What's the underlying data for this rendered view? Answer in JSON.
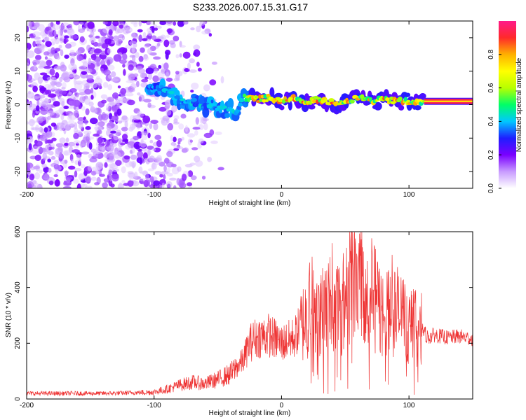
{
  "title": "S233.2026.007.15.31.G17",
  "chart_data": [
    {
      "type": "heatmap",
      "name": "spectrogram",
      "xlabel": "Height of straight line (km)",
      "ylabel": "Frequency (Hz)",
      "xlim": [
        -200,
        150
      ],
      "ylim": [
        -25,
        25
      ],
      "xticks": [
        -200,
        -100,
        0,
        100
      ],
      "yticks": [
        -20,
        -10,
        0,
        10,
        20
      ],
      "colorbar": {
        "label": "Normalized spectral amplitude",
        "range": [
          0,
          1
        ],
        "ticks": [
          0.0,
          0.2,
          0.4,
          0.6,
          0.8
        ],
        "tick_labels": [
          "0.0",
          "0.2",
          "0.4",
          "0.6",
          "0.8"
        ],
        "colormap": [
          "#ffffff",
          "#c89bff",
          "#7a00ff",
          "#1e1eff",
          "#00c8ff",
          "#00ff66",
          "#b8ff00",
          "#ffff00",
          "#ffb000",
          "#ff2a2a",
          "#ff1a8a"
        ]
      },
      "ridge": [
        {
          "x": -105,
          "y": 5.5
        },
        {
          "x": -95,
          "y": 5
        },
        {
          "x": -90,
          "y": 4
        },
        {
          "x": -85,
          "y": 2.5
        },
        {
          "x": -80,
          "y": 1
        },
        {
          "x": -75,
          "y": 0.5
        },
        {
          "x": -70,
          "y": 1
        },
        {
          "x": -65,
          "y": 0
        },
        {
          "x": -60,
          "y": -0.5
        },
        {
          "x": -55,
          "y": 0.5
        },
        {
          "x": -50,
          "y": -1
        },
        {
          "x": -45,
          "y": -1.5
        },
        {
          "x": -40,
          "y": -1
        },
        {
          "x": -35,
          "y": -2
        },
        {
          "x": -30,
          "y": 2
        },
        {
          "x": -20,
          "y": 1.5
        },
        {
          "x": -10,
          "y": 2
        },
        {
          "x": 0,
          "y": 1
        },
        {
          "x": 10,
          "y": 2
        },
        {
          "x": 20,
          "y": 1
        },
        {
          "x": 30,
          "y": 1.5
        },
        {
          "x": 40,
          "y": 0.5
        },
        {
          "x": 50,
          "y": 1
        },
        {
          "x": 60,
          "y": 2
        },
        {
          "x": 70,
          "y": 1
        },
        {
          "x": 80,
          "y": 1.5
        },
        {
          "x": 90,
          "y": 1
        },
        {
          "x": 100,
          "y": 1
        },
        {
          "x": 110,
          "y": 1
        },
        {
          "x": 120,
          "y": 1
        },
        {
          "x": 130,
          "y": 1
        },
        {
          "x": 140,
          "y": 1
        },
        {
          "x": 150,
          "y": 1
        }
      ]
    },
    {
      "type": "line",
      "name": "snr",
      "xlabel": "Height of straight line (km)",
      "ylabel": "SNR (10 * v/v)",
      "xlim": [
        -200,
        150
      ],
      "ylim": [
        0,
        600
      ],
      "xticks": [
        -200,
        -100,
        0,
        100
      ],
      "yticks": [
        0,
        200,
        400,
        600
      ],
      "color": "#ee3333",
      "series": [
        {
          "name": "SNR",
          "x": [
            -200,
            -180,
            -160,
            -140,
            -120,
            -100,
            -90,
            -80,
            -70,
            -60,
            -50,
            -40,
            -30,
            -25,
            -20,
            -10,
            0,
            10,
            20,
            25,
            30,
            40,
            50,
            55,
            60,
            70,
            80,
            90,
            100,
            110,
            115,
            120,
            130,
            140,
            150
          ],
          "values": [
            20,
            20,
            20,
            20,
            22,
            25,
            35,
            50,
            60,
            55,
            70,
            90,
            140,
            200,
            220,
            230,
            200,
            220,
            300,
            380,
            320,
            330,
            350,
            480,
            450,
            380,
            300,
            320,
            260,
            250,
            220,
            230,
            220,
            225,
            215
          ]
        }
      ]
    }
  ]
}
